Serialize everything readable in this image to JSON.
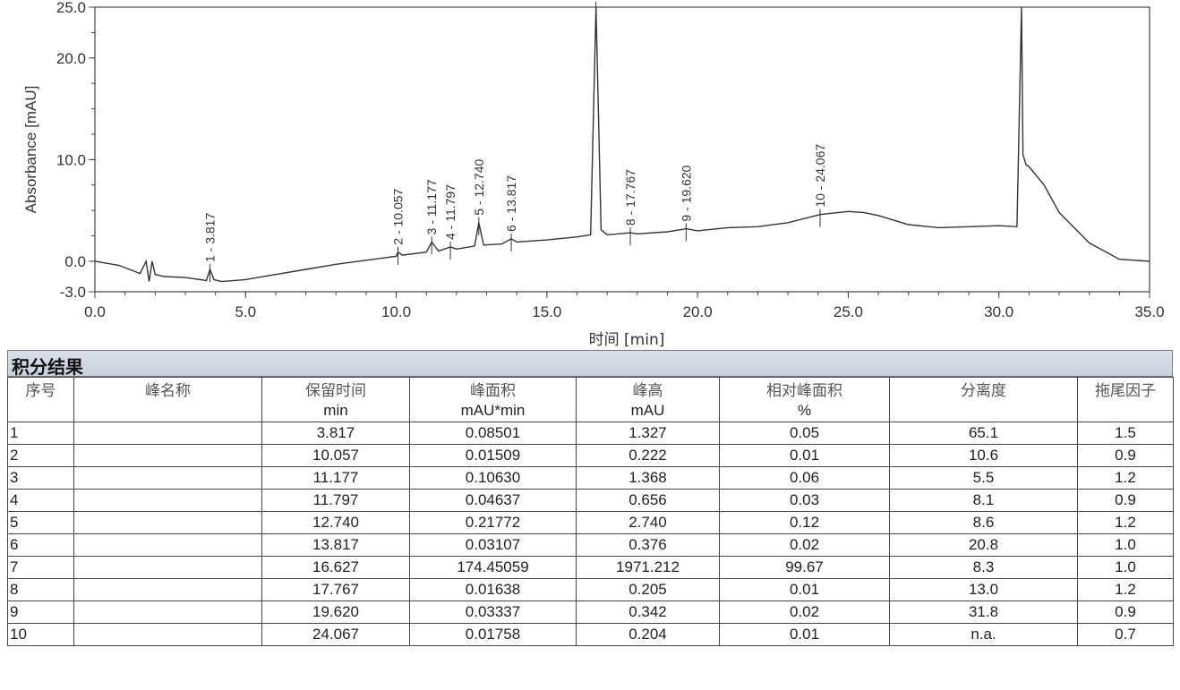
{
  "chart_data": {
    "type": "line",
    "xlabel": "时间 [min]",
    "ylabel": "Absorbance [mAU]",
    "xlim": [
      0,
      35
    ],
    "ylim": [
      -3,
      25
    ],
    "xticks": [
      "0.0",
      "5.0",
      "10.0",
      "15.0",
      "20.0",
      "25.0",
      "30.0",
      "35.0"
    ],
    "yticks": [
      "-3.0",
      "0.0",
      "10.0",
      "20.0",
      "25.0"
    ],
    "series": [
      {
        "x": [
          0.0,
          0.8,
          1.5,
          1.7,
          1.8,
          1.9,
          2.0,
          2.3,
          3.0,
          3.7,
          3.82,
          3.95,
          4.2,
          5.0,
          6.0,
          7.0,
          8.0,
          9.0,
          10.0,
          10.06,
          10.2,
          11.0,
          11.18,
          11.4,
          11.8,
          12.0,
          12.6,
          12.74,
          12.9,
          13.5,
          13.82,
          14.0,
          15.0,
          16.0,
          16.45,
          16.63,
          16.8,
          17.0,
          17.77,
          18.0,
          19.0,
          19.62,
          20.0,
          21.0,
          22.0,
          23.0,
          24.07,
          25.0,
          25.5,
          26.0,
          27.0,
          28.0,
          29.0,
          30.0,
          30.6,
          30.75,
          30.8,
          30.9,
          31.0,
          31.5,
          32.0,
          33.0,
          34.0,
          35.0
        ],
        "y": [
          0.0,
          -0.4,
          -1.2,
          0.0,
          -2.0,
          0.0,
          -1.3,
          -1.5,
          -1.6,
          -1.9,
          -0.8,
          -1.8,
          -2.0,
          -1.8,
          -1.3,
          -0.8,
          -0.3,
          0.1,
          0.5,
          0.9,
          0.6,
          0.9,
          1.9,
          1.0,
          1.4,
          1.2,
          1.5,
          3.8,
          1.6,
          1.7,
          2.2,
          1.9,
          2.1,
          2.4,
          2.6,
          25.0,
          3.1,
          2.6,
          2.8,
          2.7,
          2.9,
          3.2,
          3.0,
          3.3,
          3.4,
          3.8,
          4.6,
          4.9,
          4.8,
          4.5,
          3.6,
          3.3,
          3.4,
          3.5,
          3.4,
          25.0,
          10.5,
          9.5,
          9.3,
          7.5,
          4.8,
          1.8,
          0.2,
          0.0
        ]
      }
    ],
    "peak_labels": [
      {
        "x": 3.817,
        "y": -0.8,
        "label": "1 - 3.817"
      },
      {
        "x": 10.057,
        "y": 0.9,
        "label": "2 - 10.057"
      },
      {
        "x": 11.177,
        "y": 1.9,
        "label": "3 - 11.177"
      },
      {
        "x": 11.797,
        "y": 1.4,
        "label": "4 - 11.797"
      },
      {
        "x": 12.74,
        "y": 3.8,
        "label": "5 - 12.740"
      },
      {
        "x": 13.817,
        "y": 2.2,
        "label": "6 - 13.817"
      },
      {
        "x": 16.627,
        "y": 25.0,
        "label": "7 - 16.627"
      },
      {
        "x": 17.767,
        "y": 2.8,
        "label": "8 - 17.767"
      },
      {
        "x": 19.62,
        "y": 3.2,
        "label": "9 - 19.620"
      },
      {
        "x": 24.067,
        "y": 4.6,
        "label": "10 - 24.067"
      }
    ]
  },
  "results": {
    "title": "积分结果",
    "headers": [
      "序号",
      "峰名称",
      "保留时间",
      "峰面积",
      "峰高",
      "相对峰面积",
      "分离度",
      "拖尾因子"
    ],
    "units": [
      "",
      "",
      "min",
      "mAU*min",
      "mAU",
      "%",
      "",
      ""
    ],
    "rows": [
      [
        "1",
        "",
        "3.817",
        "0.08501",
        "1.327",
        "0.05",
        "65.1",
        "1.5"
      ],
      [
        "2",
        "",
        "10.057",
        "0.01509",
        "0.222",
        "0.01",
        "10.6",
        "0.9"
      ],
      [
        "3",
        "",
        "11.177",
        "0.10630",
        "1.368",
        "0.06",
        "5.5",
        "1.2"
      ],
      [
        "4",
        "",
        "11.797",
        "0.04637",
        "0.656",
        "0.03",
        "8.1",
        "0.9"
      ],
      [
        "5",
        "",
        "12.740",
        "0.21772",
        "2.740",
        "0.12",
        "8.6",
        "1.2"
      ],
      [
        "6",
        "",
        "13.817",
        "0.03107",
        "0.376",
        "0.02",
        "20.8",
        "1.0"
      ],
      [
        "7",
        "",
        "16.627",
        "174.45059",
        "1971.212",
        "99.67",
        "8.3",
        "1.0"
      ],
      [
        "8",
        "",
        "17.767",
        "0.01638",
        "0.205",
        "0.01",
        "13.0",
        "1.2"
      ],
      [
        "9",
        "",
        "19.620",
        "0.03337",
        "0.342",
        "0.02",
        "31.8",
        "0.9"
      ],
      [
        "10",
        "",
        "24.067",
        "0.01758",
        "0.204",
        "0.01",
        "n.a.",
        "0.7"
      ]
    ]
  }
}
